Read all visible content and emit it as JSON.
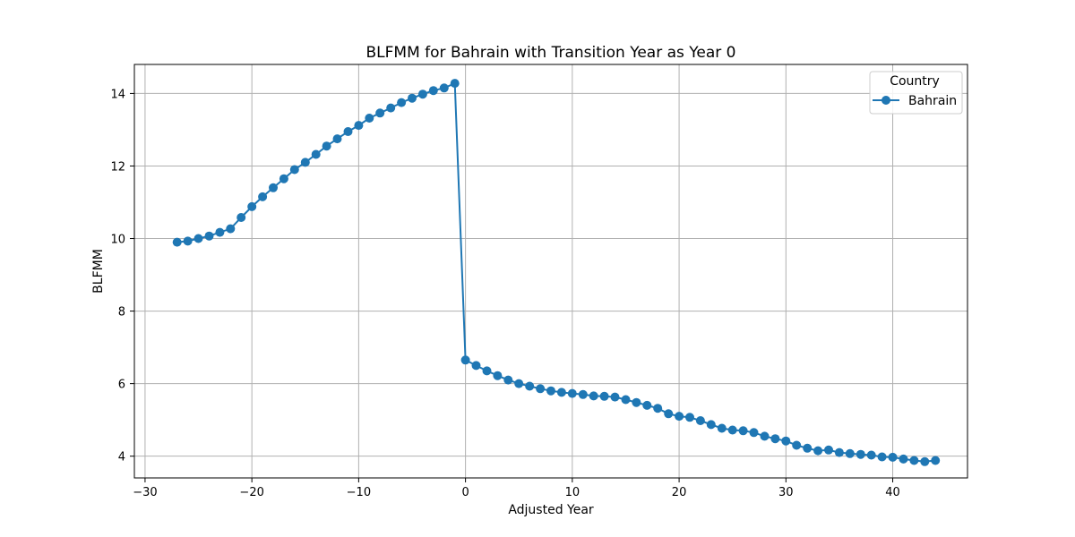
{
  "chart_data": {
    "type": "line",
    "title": "BLFMM for Bahrain with Transition Year as Year 0",
    "xlabel": "Adjusted Year",
    "ylabel": "BLFMM",
    "xlim": [
      -31,
      47
    ],
    "ylim": [
      3.4,
      14.8
    ],
    "xticks": [
      -30,
      -20,
      -10,
      0,
      10,
      20,
      30,
      40
    ],
    "yticks": [
      4,
      6,
      8,
      10,
      12,
      14
    ],
    "grid": true,
    "legend": {
      "title": "Country",
      "placement": "top-right"
    },
    "series": [
      {
        "name": "Bahrain",
        "color": "#1f77b4",
        "marker": "circle",
        "x": [
          -27,
          -26,
          -25,
          -24,
          -23,
          -22,
          -21,
          -20,
          -19,
          -18,
          -17,
          -16,
          -15,
          -14,
          -13,
          -12,
          -11,
          -10,
          -9,
          -8,
          -7,
          -6,
          -5,
          -4,
          -3,
          -2,
          -1,
          0,
          1,
          2,
          3,
          4,
          5,
          6,
          7,
          8,
          9,
          10,
          11,
          12,
          13,
          14,
          15,
          16,
          17,
          18,
          19,
          20,
          21,
          22,
          23,
          24,
          25,
          26,
          27,
          28,
          29,
          30,
          31,
          32,
          33,
          34,
          35,
          36,
          37,
          38,
          39,
          40,
          41,
          42,
          43,
          44
        ],
        "y": [
          9.9,
          9.93,
          10.0,
          10.07,
          10.17,
          10.27,
          10.58,
          10.88,
          11.15,
          11.4,
          11.65,
          11.9,
          12.1,
          12.32,
          12.55,
          12.75,
          12.95,
          13.12,
          13.32,
          13.46,
          13.6,
          13.75,
          13.87,
          13.98,
          14.08,
          14.15,
          14.28,
          6.65,
          6.5,
          6.35,
          6.22,
          6.1,
          6.0,
          5.93,
          5.86,
          5.8,
          5.76,
          5.73,
          5.7,
          5.66,
          5.65,
          5.63,
          5.56,
          5.48,
          5.4,
          5.32,
          5.17,
          5.1,
          5.07,
          4.98,
          4.87,
          4.77,
          4.72,
          4.7,
          4.65,
          4.55,
          4.48,
          4.42,
          4.3,
          4.22,
          4.15,
          4.17,
          4.1,
          4.07,
          4.05,
          4.03,
          3.98,
          3.97,
          3.92,
          3.88,
          3.85,
          3.88
        ]
      }
    ]
  }
}
